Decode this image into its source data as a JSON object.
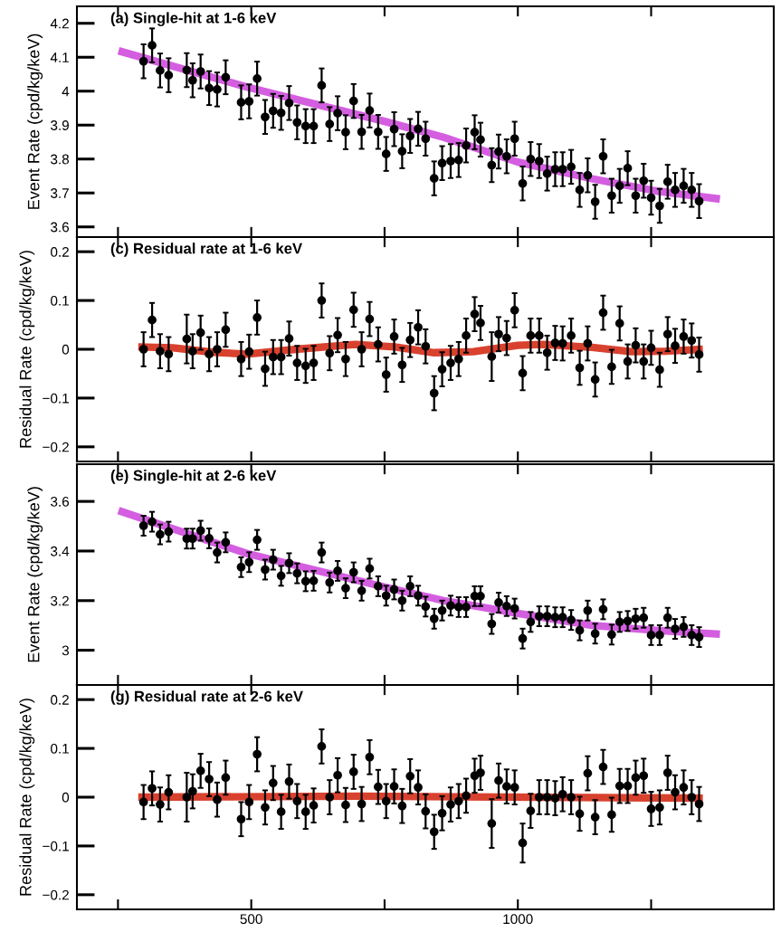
{
  "chart_data": [
    {
      "type": "scatter",
      "title": "(a) Single-hit at 1-6 keV",
      "ylabel": "Event Rate (cpd/kg/keV)",
      "xlim": [
        173,
        1480
      ],
      "xticks": [
        {
          "value": 250,
          "label": null
        },
        500,
        {
          "value": 750,
          "label": null
        },
        1000,
        {
          "value": 1250,
          "label": null
        }
      ],
      "ylim": [
        3.57,
        4.25
      ],
      "yticks": [
        3.6,
        3.7,
        3.8,
        3.9,
        4,
        4.1,
        4.2
      ],
      "tick_labels": "y",
      "marker": "circle",
      "grid": false,
      "legend": false,
      "series": [
        {
          "color": "#000000",
          "x": [
            298,
            314,
            329,
            345,
            379,
            390,
            405,
            421,
            436,
            452,
            481,
            496,
            511,
            526,
            541,
            556,
            571,
            586,
            602,
            617,
            632,
            647,
            662,
            677,
            692,
            707,
            722,
            738,
            753,
            768,
            783,
            798,
            813,
            827,
            843,
            858,
            874,
            889,
            903,
            919,
            930,
            951,
            964,
            979,
            994,
            1009,
            1024,
            1040,
            1055,
            1070,
            1084,
            1100,
            1116,
            1131,
            1145,
            1160,
            1176,
            1191,
            1206,
            1221,
            1236,
            1250,
            1266,
            1281,
            1295,
            1311,
            1326,
            1340
          ],
          "values": [
            4.088,
            4.135,
            4.061,
            4.047,
            4.062,
            4.032,
            4.058,
            4.009,
            4.005,
            4.041,
            3.967,
            3.97,
            4.037,
            3.924,
            3.942,
            3.936,
            3.965,
            3.908,
            3.897,
            3.897,
            4.017,
            3.903,
            3.935,
            3.879,
            3.971,
            3.88,
            3.943,
            3.88,
            3.815,
            3.888,
            3.823,
            3.868,
            3.889,
            3.86,
            3.743,
            3.788,
            3.794,
            3.797,
            3.84,
            3.879,
            3.857,
            3.782,
            3.822,
            3.808,
            3.86,
            3.728,
            3.8,
            3.794,
            3.757,
            3.77,
            3.77,
            3.777,
            3.709,
            3.752,
            3.674,
            3.808,
            3.692,
            3.721,
            3.773,
            3.692,
            3.736,
            3.686,
            3.662,
            3.733,
            3.709,
            3.721,
            3.709,
            3.676
          ],
          "errors": [
            0.05,
            0.05,
            0.05,
            0.05,
            0.05,
            0.05,
            0.05,
            0.05,
            0.05,
            0.05,
            0.05,
            0.05,
            0.05,
            0.05,
            0.05,
            0.05,
            0.05,
            0.05,
            0.05,
            0.05,
            0.05,
            0.05,
            0.05,
            0.05,
            0.05,
            0.05,
            0.05,
            0.05,
            0.05,
            0.05,
            0.05,
            0.05,
            0.05,
            0.05,
            0.05,
            0.05,
            0.05,
            0.05,
            0.05,
            0.05,
            0.05,
            0.05,
            0.05,
            0.05,
            0.05,
            0.05,
            0.05,
            0.05,
            0.05,
            0.05,
            0.05,
            0.05,
            0.05,
            0.05,
            0.05,
            0.05,
            0.05,
            0.05,
            0.05,
            0.05,
            0.05,
            0.05,
            0.05,
            0.05,
            0.05,
            0.05,
            0.05,
            0.05
          ]
        },
        {
          "type": "line",
          "color": "#d45ee0",
          "marker": "none",
          "x": [
            251,
            492,
            750,
            861,
            1000,
            1139,
            1259,
            1379
          ],
          "values": [
            4.119,
            4.012,
            3.911,
            3.864,
            3.791,
            3.742,
            3.706,
            3.682
          ]
        }
      ]
    },
    {
      "type": "scatter",
      "title": "(c) Residual rate at 1-6 keV",
      "ylabel": "Residual Rate (cpd/kg/keV)",
      "xlim": [
        173,
        1480
      ],
      "xticks": [
        {
          "value": 250,
          "label": null
        },
        500,
        {
          "value": 750,
          "label": null
        },
        1000,
        {
          "value": 1250,
          "label": null
        }
      ],
      "ylim": [
        -0.23,
        0.23
      ],
      "yticks": [
        -0.2,
        -0.1,
        0,
        0.1,
        0.2
      ],
      "tick_labels": "y",
      "marker": "circle",
      "grid": false,
      "legend": false,
      "series": [
        {
          "color": "#000000",
          "x": [
            298,
            314,
            329,
            345,
            379,
            390,
            405,
            421,
            436,
            452,
            481,
            496,
            511,
            526,
            541,
            556,
            571,
            586,
            602,
            617,
            632,
            647,
            662,
            677,
            692,
            707,
            722,
            738,
            753,
            768,
            783,
            798,
            813,
            827,
            843,
            858,
            874,
            889,
            903,
            919,
            930,
            951,
            964,
            979,
            994,
            1009,
            1024,
            1040,
            1055,
            1070,
            1084,
            1100,
            1116,
            1131,
            1145,
            1160,
            1176,
            1191,
            1206,
            1221,
            1236,
            1250,
            1266,
            1281,
            1295,
            1311,
            1326,
            1340
          ],
          "values": [
            0.0,
            0.06,
            -0.004,
            -0.01,
            0.021,
            -0.004,
            0.034,
            -0.01,
            0.0,
            0.04,
            -0.02,
            -0.005,
            0.065,
            -0.04,
            -0.016,
            -0.016,
            0.022,
            -0.028,
            -0.034,
            -0.028,
            0.1,
            -0.008,
            0.029,
            -0.02,
            0.081,
            0.0,
            0.062,
            0.01,
            -0.052,
            0.026,
            -0.032,
            0.019,
            0.045,
            0.006,
            -0.09,
            -0.041,
            -0.028,
            -0.02,
            0.028,
            0.072,
            0.054,
            -0.015,
            0.031,
            0.023,
            0.08,
            -0.049,
            0.028,
            0.028,
            -0.007,
            0.013,
            0.012,
            0.028,
            -0.038,
            0.012,
            -0.062,
            0.075,
            -0.036,
            0.053,
            -0.025,
            0.008,
            -0.025,
            0.003,
            -0.042,
            0.031,
            0.007,
            0.026,
            0.018,
            -0.011
          ],
          "errors": [
            0.035,
            0.035,
            0.035,
            0.035,
            0.05,
            0.035,
            0.035,
            0.035,
            0.035,
            0.035,
            0.035,
            0.035,
            0.035,
            0.035,
            0.035,
            0.035,
            0.035,
            0.035,
            0.035,
            0.035,
            0.035,
            0.035,
            0.035,
            0.035,
            0.035,
            0.035,
            0.035,
            0.035,
            0.035,
            0.035,
            0.035,
            0.035,
            0.035,
            0.035,
            0.035,
            0.035,
            0.035,
            0.035,
            0.035,
            0.035,
            0.035,
            0.05,
            0.035,
            0.035,
            0.035,
            0.035,
            0.035,
            0.035,
            0.035,
            0.035,
            0.035,
            0.035,
            0.035,
            0.035,
            0.035,
            0.035,
            0.035,
            0.035,
            0.035,
            0.035,
            0.035,
            0.035,
            0.035,
            0.035,
            0.035,
            0.035,
            0.035,
            0.035
          ]
        },
        {
          "type": "line",
          "color": "#d9412f",
          "marker": "none",
          "x": [
            288,
            353,
            427,
            492,
            584,
            695,
            769,
            843,
            917,
            1000,
            1046,
            1139,
            1213,
            1277,
            1347
          ],
          "values": [
            0.005,
            0.003,
            -0.006,
            -0.01,
            0.0,
            0.01,
            0.005,
            -0.007,
            -0.005,
            0.008,
            0.01,
            0.004,
            -0.005,
            -0.004,
            0.0
          ]
        }
      ]
    },
    {
      "type": "scatter",
      "title": "(e) Single-hit at 2-6 keV",
      "ylabel": "Event Rate (cpd/kg/keV)",
      "xlim": [
        173,
        1480
      ],
      "xticks": [
        {
          "value": 250,
          "label": null
        },
        500,
        {
          "value": 750,
          "label": null
        },
        1000,
        {
          "value": 1250,
          "label": null
        }
      ],
      "ylim": [
        2.86,
        3.75
      ],
      "yticks": [
        3,
        3.2,
        3.4,
        3.6
      ],
      "tick_labels": "y",
      "marker": "circle",
      "grid": false,
      "legend": false,
      "series": [
        {
          "color": "#000000",
          "x": [
            298,
            314,
            329,
            345,
            379,
            390,
            405,
            421,
            436,
            452,
            481,
            496,
            511,
            526,
            541,
            556,
            571,
            586,
            602,
            617,
            632,
            647,
            662,
            677,
            692,
            707,
            722,
            738,
            753,
            768,
            783,
            798,
            813,
            827,
            843,
            858,
            874,
            889,
            903,
            919,
            930,
            951,
            964,
            979,
            994,
            1009,
            1024,
            1040,
            1055,
            1070,
            1084,
            1100,
            1116,
            1131,
            1145,
            1160,
            1176,
            1191,
            1206,
            1221,
            1236,
            1250,
            1266,
            1281,
            1295,
            1311,
            1326,
            1340
          ],
          "values": [
            3.502,
            3.518,
            3.467,
            3.478,
            3.45,
            3.45,
            3.482,
            3.451,
            3.394,
            3.435,
            3.335,
            3.355,
            3.445,
            3.325,
            3.365,
            3.3,
            3.351,
            3.31,
            3.278,
            3.28,
            3.394,
            3.273,
            3.32,
            3.25,
            3.314,
            3.24,
            3.329,
            3.258,
            3.22,
            3.245,
            3.2,
            3.258,
            3.22,
            3.176,
            3.127,
            3.16,
            3.18,
            3.174,
            3.174,
            3.218,
            3.218,
            3.106,
            3.192,
            3.178,
            3.168,
            3.047,
            3.114,
            3.137,
            3.137,
            3.133,
            3.133,
            3.122,
            3.08,
            3.16,
            3.067,
            3.165,
            3.063,
            3.114,
            3.118,
            3.127,
            3.131,
            3.061,
            3.061,
            3.131,
            3.086,
            3.094,
            3.061,
            3.053
          ],
          "errors": [
            0.04,
            0.04,
            0.04,
            0.04,
            0.04,
            0.04,
            0.04,
            0.04,
            0.04,
            0.04,
            0.04,
            0.04,
            0.04,
            0.04,
            0.04,
            0.04,
            0.04,
            0.04,
            0.04,
            0.04,
            0.04,
            0.04,
            0.04,
            0.04,
            0.04,
            0.04,
            0.04,
            0.04,
            0.04,
            0.04,
            0.04,
            0.04,
            0.04,
            0.04,
            0.04,
            0.04,
            0.04,
            0.04,
            0.04,
            0.04,
            0.04,
            0.04,
            0.04,
            0.04,
            0.04,
            0.04,
            0.04,
            0.04,
            0.04,
            0.04,
            0.04,
            0.04,
            0.04,
            0.04,
            0.04,
            0.04,
            0.04,
            0.04,
            0.04,
            0.04,
            0.04,
            0.04,
            0.04,
            0.04,
            0.04,
            0.04,
            0.04,
            0.04
          ]
        },
        {
          "type": "line",
          "color": "#d45ee0",
          "marker": "none",
          "x": [
            251,
            492,
            750,
            861,
            1000,
            1139,
            1259,
            1379
          ],
          "values": [
            3.563,
            3.39,
            3.255,
            3.2,
            3.149,
            3.1,
            3.08,
            3.065
          ]
        }
      ]
    },
    {
      "type": "scatter",
      "title": "(g) Residual rate at 2-6 keV",
      "ylabel": "Residual Rate (cpd/kg/keV)",
      "xlim": [
        173,
        1480
      ],
      "xticks": [
        {
          "value": 250,
          "label": null
        },
        500,
        {
          "value": 750,
          "label": null
        },
        1000,
        {
          "value": 1250,
          "label": null
        }
      ],
      "ylim": [
        -0.23,
        0.23
      ],
      "yticks": [
        -0.2,
        -0.1,
        0,
        0.1,
        0.2
      ],
      "marker": "circle",
      "grid": false,
      "legend": false,
      "series": [
        {
          "color": "#000000",
          "x": [
            298,
            314,
            329,
            345,
            379,
            390,
            405,
            421,
            436,
            452,
            481,
            496,
            511,
            526,
            541,
            556,
            571,
            586,
            602,
            617,
            632,
            647,
            662,
            677,
            692,
            707,
            722,
            738,
            753,
            768,
            783,
            798,
            813,
            827,
            843,
            858,
            874,
            889,
            903,
            919,
            930,
            951,
            964,
            979,
            994,
            1009,
            1024,
            1040,
            1055,
            1070,
            1084,
            1100,
            1116,
            1131,
            1145,
            1160,
            1176,
            1191,
            1206,
            1221,
            1236,
            1250,
            1266,
            1281,
            1295,
            1311,
            1326,
            1340
          ],
          "values": [
            -0.01,
            0.018,
            -0.015,
            0.01,
            0.0,
            0.012,
            0.054,
            0.037,
            -0.005,
            0.04,
            -0.045,
            -0.01,
            0.088,
            -0.021,
            0.029,
            -0.03,
            0.032,
            -0.008,
            -0.03,
            -0.017,
            0.104,
            0.0,
            0.045,
            -0.016,
            0.052,
            -0.014,
            0.082,
            0.021,
            -0.008,
            0.022,
            -0.018,
            0.043,
            0.02,
            -0.029,
            -0.071,
            -0.033,
            -0.015,
            -0.008,
            0.003,
            0.044,
            0.05,
            -0.054,
            0.034,
            0.022,
            0.02,
            -0.094,
            -0.028,
            0.0,
            0.0,
            -0.002,
            0.006,
            0.0,
            -0.034,
            0.049,
            -0.041,
            0.062,
            -0.036,
            0.023,
            0.023,
            0.04,
            0.044,
            -0.024,
            -0.021,
            0.05,
            0.01,
            0.02,
            0.0,
            -0.014
          ],
          "errors": [
            0.035,
            0.035,
            0.035,
            0.035,
            0.05,
            0.035,
            0.035,
            0.035,
            0.035,
            0.035,
            0.035,
            0.035,
            0.035,
            0.035,
            0.035,
            0.035,
            0.035,
            0.035,
            0.035,
            0.035,
            0.035,
            0.035,
            0.035,
            0.035,
            0.035,
            0.035,
            0.035,
            0.035,
            0.035,
            0.035,
            0.035,
            0.035,
            0.035,
            0.035,
            0.035,
            0.035,
            0.035,
            0.035,
            0.035,
            0.035,
            0.035,
            0.05,
            0.035,
            0.035,
            0.035,
            0.04,
            0.035,
            0.035,
            0.035,
            0.035,
            0.035,
            0.035,
            0.035,
            0.035,
            0.035,
            0.035,
            0.035,
            0.035,
            0.035,
            0.035,
            0.035,
            0.035,
            0.035,
            0.035,
            0.035,
            0.035,
            0.035,
            0.035
          ]
        },
        {
          "type": "line",
          "color": "#d9412f",
          "marker": "none",
          "x": [
            288,
            700,
            1347
          ],
          "values": [
            0.0,
            0.002,
            -0.002
          ]
        }
      ]
    }
  ]
}
